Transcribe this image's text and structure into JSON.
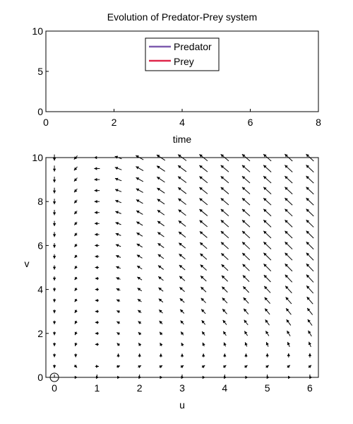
{
  "chart_data": [
    {
      "type": "line",
      "title": "Evolution of Predator-Prey system",
      "xlabel": "time",
      "ylabel": "",
      "xlim": [
        0,
        8
      ],
      "ylim": [
        0,
        10
      ],
      "xticks": [
        "0",
        "2",
        "4",
        "6",
        "8"
      ],
      "yticks": [
        "0",
        "5",
        "10"
      ],
      "legend_position": "top-center",
      "series": [
        {
          "name": "Predator",
          "color": "#7e5cae",
          "x": [],
          "y": []
        },
        {
          "name": "Prey",
          "color": "#e0264a",
          "x": [],
          "y": []
        }
      ]
    },
    {
      "type": "quiver",
      "title": "",
      "xlabel": "u",
      "ylabel": "v",
      "xlim": [
        -0.2,
        6.2
      ],
      "ylim": [
        0,
        10
      ],
      "xticks": [
        "0",
        "1",
        "2",
        "3",
        "4",
        "5",
        "6"
      ],
      "yticks": [
        "0",
        "2",
        "4",
        "6",
        "8",
        "10"
      ],
      "grid_u_range": [
        0,
        6
      ],
      "grid_u_step": 0.5,
      "grid_v_range": [
        0,
        10
      ],
      "grid_v_step": 0.5,
      "field": "du = u*(1 - v), dv = v*(u - 1)",
      "marker": {
        "type": "circle",
        "u": 0,
        "v": 0
      },
      "arrow_color": "#000000"
    }
  ]
}
